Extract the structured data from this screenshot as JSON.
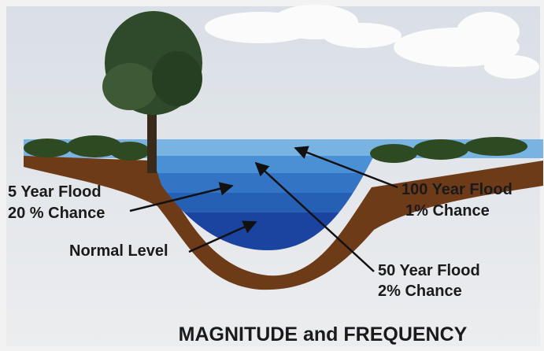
{
  "title": "MAGNITUDE and FREQUENCY",
  "labels": [
    {
      "lines": [
        "5 Year Flood",
        "20 % Chance"
      ]
    },
    {
      "lines": [
        "Normal Level"
      ]
    },
    {
      "lines": [
        "100 Year Flood",
        "1% Chance"
      ]
    },
    {
      "lines": [
        "50 Year Flood",
        "2% Chance"
      ]
    }
  ]
}
